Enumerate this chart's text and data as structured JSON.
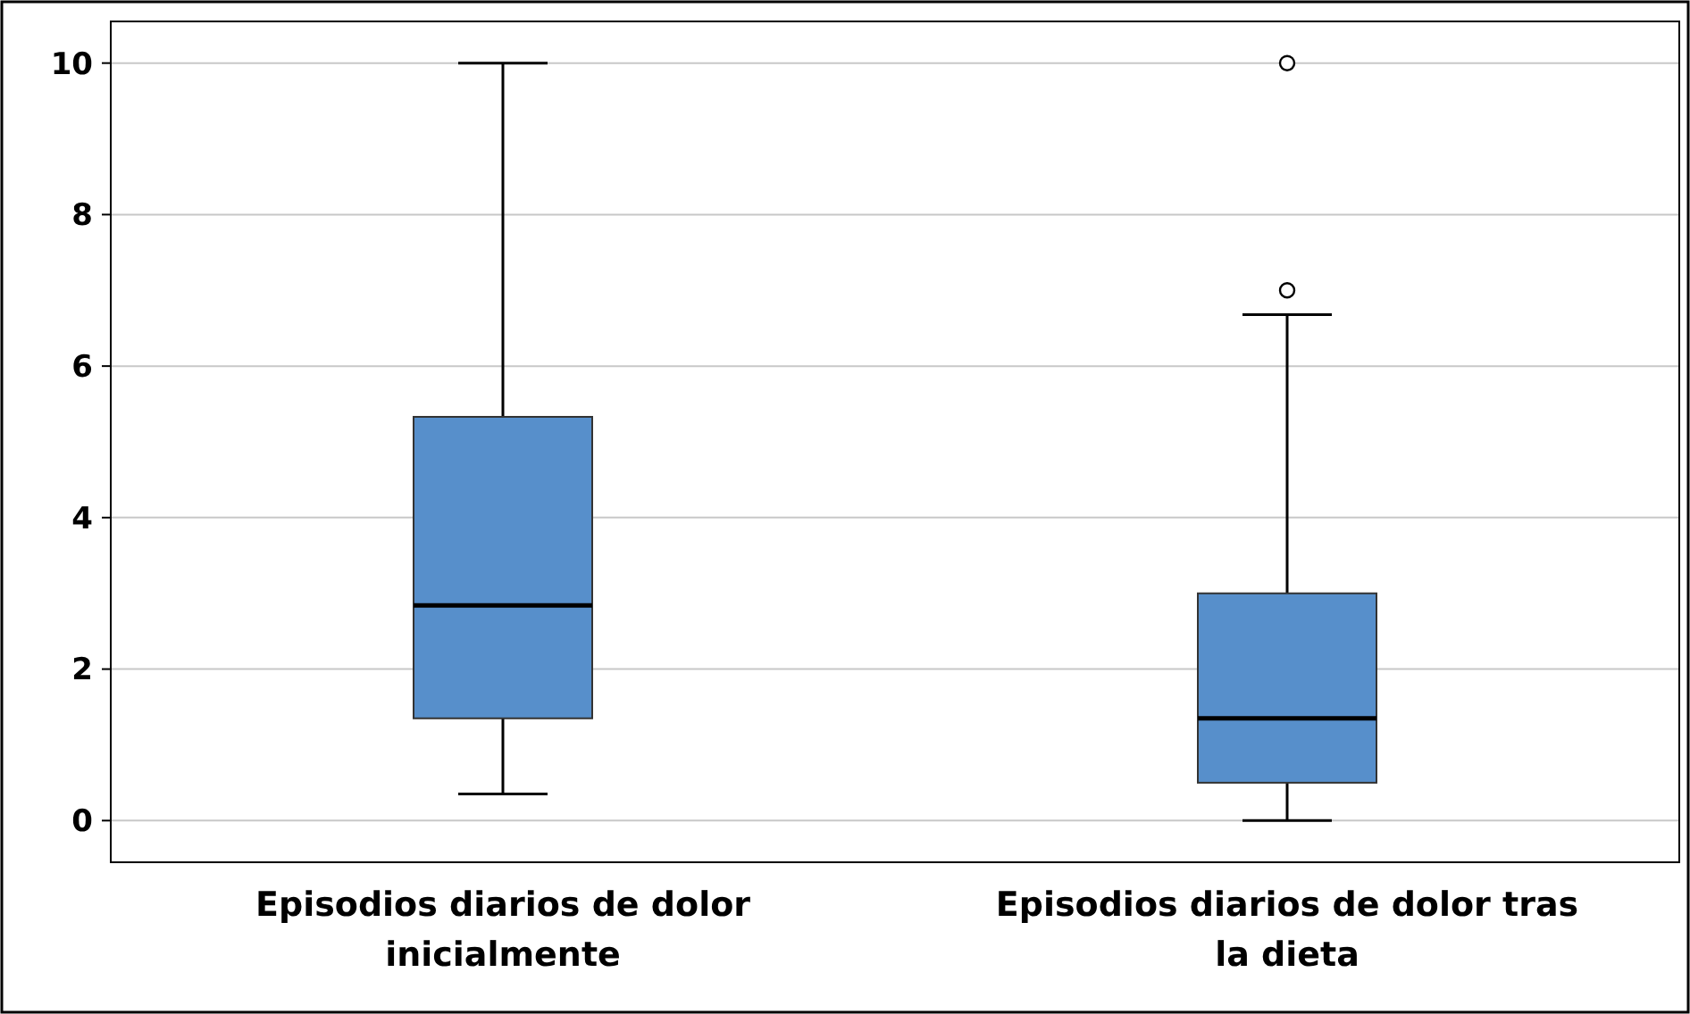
{
  "chart_data": {
    "type": "box",
    "categories": [
      "Episodios diarios de dolor inicialmente",
      "Episodios diarios de dolor tras la dieta"
    ],
    "color": "#578fcb",
    "boxes": [
      {
        "low": 0.35,
        "q1": 1.35,
        "median": 2.84,
        "q3": 5.33,
        "high": 10
      },
      {
        "low": 0,
        "q1": 0.5,
        "median": 1.35,
        "q3": 3,
        "high": 6.68,
        "outliers": [
          7,
          10
        ]
      }
    ],
    "ylim": [
      -0.55,
      10.55
    ],
    "yticks": [
      0,
      2,
      4,
      6,
      8,
      10
    ],
    "grid": "y"
  }
}
